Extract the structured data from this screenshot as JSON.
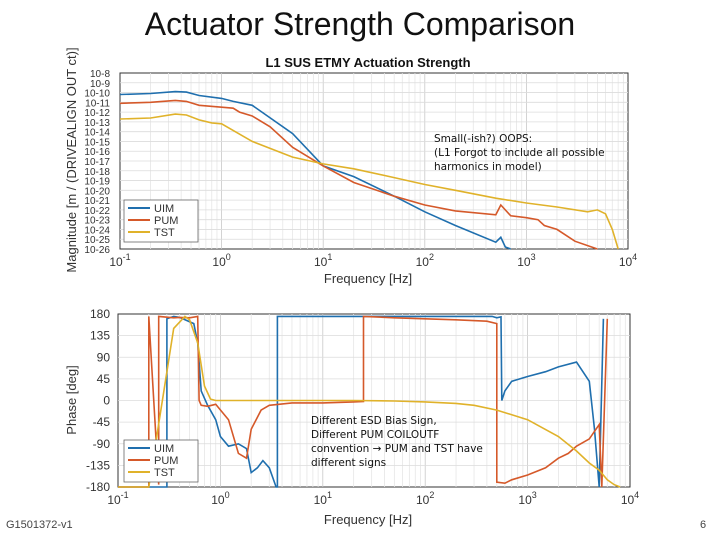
{
  "slide": {
    "title": "Actuator Strength Comparison",
    "doc_id": "G1501372-v1",
    "page_number": "6"
  },
  "colors": {
    "UIM": "#1f6fae",
    "PUM": "#d5592a",
    "TST": "#e0b22a"
  },
  "chart_data": [
    {
      "type": "line",
      "title": "L1 SUS ETMY Actuation Strength",
      "xlabel": "Frequency [Hz]",
      "ylabel": "Magnitude [m / (DRIVEALIGN OUT ct)]",
      "xscale": "log",
      "yscale": "log",
      "xlim": [
        0.1,
        10000
      ],
      "ylim": [
        1e-26,
        1e-08
      ],
      "xticks": [
        {
          "value": 0.1,
          "base": "10",
          "exp": "-1"
        },
        {
          "value": 1,
          "base": "10",
          "exp": "0"
        },
        {
          "value": 10,
          "base": "10",
          "exp": "1"
        },
        {
          "value": 100,
          "base": "10",
          "exp": "2"
        },
        {
          "value": 1000,
          "base": "10",
          "exp": "3"
        },
        {
          "value": 10000,
          "base": "10",
          "exp": "4"
        }
      ],
      "yticks": [
        "10-8",
        "10-9",
        "10-10",
        "10-11",
        "10-12",
        "10-13",
        "10-14",
        "10-15",
        "10-16",
        "10-17",
        "10-18",
        "10-19",
        "10-20",
        "10-21",
        "10-22",
        "10-23",
        "10-24",
        "10-25",
        "10-26"
      ],
      "legend_position": "bottom-left",
      "series": [
        {
          "name": "UIM",
          "x": [
            0.1,
            0.2,
            0.35,
            0.45,
            0.6,
            1,
            1.3,
            2,
            5,
            10,
            20,
            50,
            100,
            200,
            500,
            560,
            620,
            700
          ],
          "y": [
            -10.2,
            -10.1,
            -9.9,
            -9.95,
            -10.3,
            -10.6,
            -10.9,
            -11.3,
            -14.2,
            -17.5,
            -18.6,
            -20.6,
            -22.2,
            -23.6,
            -25.3,
            -24.8,
            -25.8,
            -26
          ]
        },
        {
          "name": "PUM",
          "x": [
            0.1,
            0.2,
            0.35,
            0.45,
            0.6,
            1,
            1.3,
            1.5,
            2,
            3,
            5,
            10,
            20,
            50,
            100,
            200,
            500,
            560,
            700,
            1000,
            1300,
            1500,
            2000,
            3000,
            5000
          ],
          "y": [
            -11.1,
            -11.0,
            -10.8,
            -10.9,
            -11.3,
            -11.5,
            -11.6,
            -12.0,
            -12.4,
            -13.5,
            -15.6,
            -17.5,
            -19.2,
            -20.6,
            -21.5,
            -22.1,
            -22.5,
            -21.5,
            -22.6,
            -22.8,
            -23.0,
            -23.6,
            -24.0,
            -25.2,
            -26
          ]
        },
        {
          "name": "TST",
          "x": [
            0.1,
            0.2,
            0.35,
            0.45,
            0.6,
            0.8,
            1,
            2,
            5,
            10,
            20,
            50,
            100,
            200,
            500,
            1000,
            2000,
            4000,
            5000,
            6000,
            7000,
            8000
          ],
          "y": [
            -12.7,
            -12.6,
            -12.2,
            -12.3,
            -12.8,
            -13.1,
            -13.2,
            -15.0,
            -16.6,
            -17.3,
            -17.8,
            -18.7,
            -19.4,
            -20.0,
            -20.8,
            -21.3,
            -21.7,
            -22.2,
            -22.0,
            -22.4,
            -24,
            -26
          ]
        }
      ],
      "annotation": "Small(-ish?) OOPS:\n(L1 Forgot to include all possible\nharmonics in model)"
    },
    {
      "type": "line",
      "title": "",
      "xlabel": "Frequency [Hz]",
      "ylabel": "Phase [deg]",
      "xscale": "log",
      "xlim": [
        0.1,
        10000
      ],
      "ylim": [
        -180,
        180
      ],
      "xticks": [
        {
          "value": 0.1,
          "base": "10",
          "exp": "-1"
        },
        {
          "value": 1,
          "base": "10",
          "exp": "0"
        },
        {
          "value": 10,
          "base": "10",
          "exp": "1"
        },
        {
          "value": 100,
          "base": "10",
          "exp": "2"
        },
        {
          "value": 1000,
          "base": "10",
          "exp": "3"
        },
        {
          "value": 10000,
          "base": "10",
          "exp": "4"
        }
      ],
      "yticks": [
        "180",
        "135",
        "90",
        "45",
        "0",
        "-45",
        "-90",
        "-135",
        "-180"
      ],
      "legend_position": "bottom-left",
      "series": [
        {
          "name": "UIM",
          "x": [
            0.1,
            0.3,
            0.3,
            0.35,
            0.4,
            0.55,
            0.6,
            0.65,
            0.75,
            0.9,
            1.0,
            1.2,
            1.5,
            1.8,
            2.0,
            2.3,
            2.6,
            3.0,
            3.5,
            3.6,
            3.6,
            450,
            500,
            550,
            560,
            600,
            700,
            1000,
            1500,
            2000,
            3000,
            4000,
            4500,
            5000,
            5500
          ],
          "y": [
            -180,
            -180,
            170,
            175,
            173,
            160,
            120,
            20,
            -10,
            -40,
            -75,
            -95,
            -90,
            -100,
            -150,
            -140,
            -125,
            -140,
            -180,
            -180,
            175,
            175,
            172,
            174,
            0,
            20,
            40,
            50,
            60,
            70,
            80,
            40,
            -60,
            -180,
            170
          ]
        },
        {
          "name": "PUM",
          "x": [
            0.1,
            0.2,
            0.2,
            0.25,
            0.25,
            0.35,
            0.4,
            0.5,
            0.6,
            0.62,
            0.65,
            0.75,
            0.9,
            1.2,
            1.5,
            1.8,
            2.0,
            2.5,
            3.0,
            5,
            10,
            20,
            25,
            25,
            50,
            100,
            200,
            400,
            500,
            500,
            600,
            700,
            1000,
            1500,
            2000,
            2500,
            3000,
            4000,
            5000,
            5300,
            6000
          ],
          "y": [
            -180,
            -180,
            175,
            -175,
            175,
            172,
            173,
            172,
            175,
            0,
            -10,
            -12,
            -8,
            -40,
            -110,
            -120,
            -60,
            -20,
            -10,
            -5,
            -5,
            -3,
            -2,
            175,
            172,
            170,
            168,
            165,
            160,
            -170,
            -172,
            -165,
            -155,
            -140,
            -120,
            -110,
            -95,
            -80,
            -50,
            -180,
            170
          ]
        },
        {
          "name": "TST",
          "x": [
            0.1,
            0.2,
            0.35,
            0.45,
            0.5,
            0.6,
            0.7,
            0.8,
            0.9,
            1.0,
            2,
            10,
            20,
            50,
            100,
            200,
            300,
            500,
            1000,
            2000,
            3000,
            4000,
            5000,
            6000,
            7000,
            8000
          ],
          "y": [
            -180,
            -180,
            150,
            175,
            168,
            120,
            30,
            3,
            0,
            0,
            0,
            0,
            0,
            -1,
            -3,
            -6,
            -10,
            -20,
            -40,
            -75,
            -105,
            -130,
            -145,
            -165,
            -175,
            -180
          ]
        }
      ],
      "annotation": "Different ESD Bias Sign,\nDifferent PUM COILOUTF\nconvention → PUM and TST have\ndifferent signs"
    }
  ]
}
